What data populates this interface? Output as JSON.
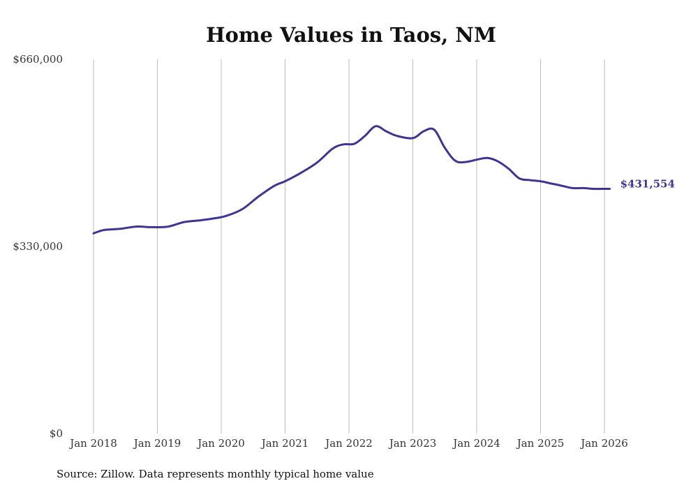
{
  "chart_data": {
    "type": "line",
    "title": "Home Values in Taos, NM",
    "xlabel": "",
    "ylabel": "",
    "ylim": [
      0,
      660000
    ],
    "yticks": [
      {
        "value": 0,
        "label": "$0"
      },
      {
        "value": 330000,
        "label": "$330,000"
      },
      {
        "value": 660000,
        "label": "$660,000"
      }
    ],
    "xticks": [
      "Jan 2018",
      "Jan 2019",
      "Jan 2020",
      "Jan 2021",
      "Jan 2022",
      "Jan 2023",
      "Jan 2024",
      "Jan 2025",
      "Jan 2026"
    ],
    "grid": "vertical",
    "line_color": "#3d3591",
    "series": [
      {
        "x": [
          "2018-01",
          "2018-03",
          "2018-06",
          "2018-09",
          "2018-12",
          "2019-03",
          "2019-06",
          "2019-09",
          "2019-12",
          "2020-02",
          "2020-05",
          "2020-08",
          "2020-11",
          "2021-01",
          "2021-04",
          "2021-07",
          "2021-10",
          "2021-12",
          "2022-02",
          "2022-04",
          "2022-06",
          "2022-08",
          "2022-10",
          "2023-01",
          "2023-03",
          "2023-05",
          "2023-07",
          "2023-09",
          "2023-11",
          "2024-01",
          "2024-03",
          "2024-05",
          "2024-07",
          "2024-09",
          "2024-11",
          "2025-01",
          "2025-03",
          "2025-05",
          "2025-07",
          "2025-09",
          "2025-11",
          "2026-01",
          "2026-02"
        ],
        "values": [
          353000,
          359000,
          361000,
          365000,
          364000,
          365000,
          373000,
          376000,
          380000,
          384000,
          396000,
          418000,
          437000,
          445000,
          460000,
          478000,
          503000,
          510000,
          511000,
          525000,
          542000,
          533000,
          525000,
          521000,
          533000,
          536000,
          504000,
          481000,
          479000,
          483000,
          486000,
          480000,
          467000,
          450000,
          447000,
          445000,
          441000,
          437000,
          433000,
          433000,
          431554,
          431554,
          431554
        ],
        "end_label": "$431,554"
      }
    ]
  },
  "footer": {
    "source": "Source: Zillow. Data represents monthly typical home value"
  }
}
